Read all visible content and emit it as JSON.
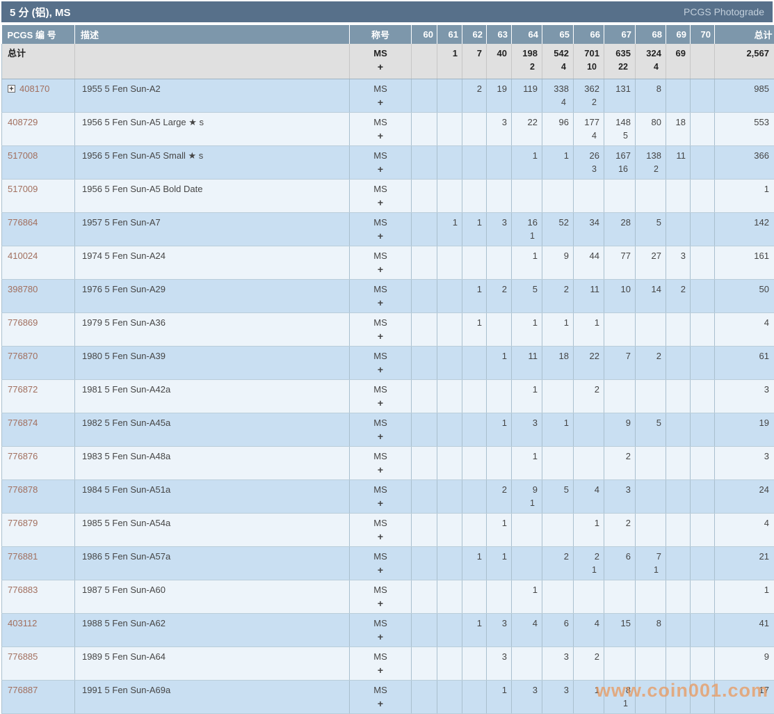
{
  "title_bar": {
    "title": "5 分 (铝), MS",
    "photograde_link": "PCGS Photograde"
  },
  "watermark": "www.coin001.com",
  "colors": {
    "title_bar_bg": "#57708a",
    "header_bg": "#7d97ab",
    "totals_bg": "#e0e0e0",
    "row_blue": "#c9dff2",
    "row_light": "#edf4fa",
    "pcgs_number_link": "#a26f5e",
    "watermark": "#e9995d"
  },
  "table": {
    "columns": {
      "number": "PCGS 编 号",
      "description": "描述",
      "designation": "称号",
      "total": "总计"
    },
    "grade_columns": [
      "60",
      "61",
      "62",
      "63",
      "64",
      "65",
      "66",
      "67",
      "68",
      "69",
      "70"
    ],
    "designation": {
      "main": "MS",
      "plus": "+"
    },
    "totals": {
      "label": "总计",
      "g": [
        [
          "",
          ""
        ],
        [
          "1",
          ""
        ],
        [
          "7",
          ""
        ],
        [
          "40",
          ""
        ],
        [
          "198",
          "2"
        ],
        [
          "542",
          "4"
        ],
        [
          "701",
          "10"
        ],
        [
          "635",
          "22"
        ],
        [
          "324",
          "4"
        ],
        [
          "69",
          ""
        ],
        [
          "",
          ""
        ]
      ],
      "total": "2,567"
    },
    "rows": [
      {
        "num": "408170",
        "exp": true,
        "desc": "1955 5 Fen Sun-A2",
        "g": [
          [
            "",
            ""
          ],
          [
            "",
            ""
          ],
          [
            "2",
            ""
          ],
          [
            "19",
            ""
          ],
          [
            "119",
            ""
          ],
          [
            "338",
            "4"
          ],
          [
            "362",
            "2"
          ],
          [
            "131",
            ""
          ],
          [
            "8",
            ""
          ],
          [
            "",
            ""
          ],
          [
            "",
            ""
          ]
        ],
        "total": "985"
      },
      {
        "num": "408729",
        "exp": false,
        "desc": "1956 5 Fen Sun-A5 Large ★ s",
        "g": [
          [
            "",
            ""
          ],
          [
            "",
            ""
          ],
          [
            "",
            ""
          ],
          [
            "3",
            ""
          ],
          [
            "22",
            ""
          ],
          [
            "96",
            ""
          ],
          [
            "177",
            "4"
          ],
          [
            "148",
            "5"
          ],
          [
            "80",
            ""
          ],
          [
            "18",
            ""
          ],
          [
            "",
            ""
          ]
        ],
        "total": "553"
      },
      {
        "num": "517008",
        "exp": false,
        "desc": "1956 5 Fen Sun-A5 Small ★ s",
        "g": [
          [
            "",
            ""
          ],
          [
            "",
            ""
          ],
          [
            "",
            ""
          ],
          [
            "",
            ""
          ],
          [
            "1",
            ""
          ],
          [
            "1",
            ""
          ],
          [
            "26",
            "3"
          ],
          [
            "167",
            "16"
          ],
          [
            "138",
            "2"
          ],
          [
            "11",
            ""
          ],
          [
            "",
            ""
          ]
        ],
        "total": "366"
      },
      {
        "num": "517009",
        "exp": false,
        "desc": "1956 5 Fen Sun-A5 Bold Date",
        "g": [
          [
            "",
            ""
          ],
          [
            "",
            ""
          ],
          [
            "",
            ""
          ],
          [
            "",
            ""
          ],
          [
            "",
            ""
          ],
          [
            "",
            ""
          ],
          [
            "",
            ""
          ],
          [
            "",
            ""
          ],
          [
            "",
            ""
          ],
          [
            "",
            ""
          ],
          [
            "",
            ""
          ]
        ],
        "total": "1"
      },
      {
        "num": "776864",
        "exp": false,
        "desc": "1957 5 Fen Sun-A7",
        "g": [
          [
            "",
            ""
          ],
          [
            "1",
            ""
          ],
          [
            "1",
            ""
          ],
          [
            "3",
            ""
          ],
          [
            "16",
            "1"
          ],
          [
            "52",
            ""
          ],
          [
            "34",
            ""
          ],
          [
            "28",
            ""
          ],
          [
            "5",
            ""
          ],
          [
            "",
            ""
          ],
          [
            "",
            ""
          ]
        ],
        "total": "142"
      },
      {
        "num": "410024",
        "exp": false,
        "desc": "1974 5 Fen Sun-A24",
        "g": [
          [
            "",
            ""
          ],
          [
            "",
            ""
          ],
          [
            "",
            ""
          ],
          [
            "",
            ""
          ],
          [
            "1",
            ""
          ],
          [
            "9",
            ""
          ],
          [
            "44",
            ""
          ],
          [
            "77",
            ""
          ],
          [
            "27",
            ""
          ],
          [
            "3",
            ""
          ],
          [
            "",
            ""
          ]
        ],
        "total": "161"
      },
      {
        "num": "398780",
        "exp": false,
        "desc": "1976 5 Fen Sun-A29",
        "g": [
          [
            "",
            ""
          ],
          [
            "",
            ""
          ],
          [
            "1",
            ""
          ],
          [
            "2",
            ""
          ],
          [
            "5",
            ""
          ],
          [
            "2",
            ""
          ],
          [
            "11",
            ""
          ],
          [
            "10",
            ""
          ],
          [
            "14",
            ""
          ],
          [
            "2",
            ""
          ],
          [
            "",
            ""
          ]
        ],
        "total": "50"
      },
      {
        "num": "776869",
        "exp": false,
        "desc": "1979 5 Fen Sun-A36",
        "g": [
          [
            "",
            ""
          ],
          [
            "",
            ""
          ],
          [
            "1",
            ""
          ],
          [
            "",
            ""
          ],
          [
            "1",
            ""
          ],
          [
            "1",
            ""
          ],
          [
            "1",
            ""
          ],
          [
            "",
            ""
          ],
          [
            "",
            ""
          ],
          [
            "",
            ""
          ],
          [
            "",
            ""
          ]
        ],
        "total": "4"
      },
      {
        "num": "776870",
        "exp": false,
        "desc": "1980 5 Fen Sun-A39",
        "g": [
          [
            "",
            ""
          ],
          [
            "",
            ""
          ],
          [
            "",
            ""
          ],
          [
            "1",
            ""
          ],
          [
            "11",
            ""
          ],
          [
            "18",
            ""
          ],
          [
            "22",
            ""
          ],
          [
            "7",
            ""
          ],
          [
            "2",
            ""
          ],
          [
            "",
            ""
          ],
          [
            "",
            ""
          ]
        ],
        "total": "61"
      },
      {
        "num": "776872",
        "exp": false,
        "desc": "1981 5 Fen Sun-A42a",
        "g": [
          [
            "",
            ""
          ],
          [
            "",
            ""
          ],
          [
            "",
            ""
          ],
          [
            "",
            ""
          ],
          [
            "1",
            ""
          ],
          [
            "",
            ""
          ],
          [
            "2",
            ""
          ],
          [
            "",
            ""
          ],
          [
            "",
            ""
          ],
          [
            "",
            ""
          ],
          [
            "",
            ""
          ]
        ],
        "total": "3"
      },
      {
        "num": "776874",
        "exp": false,
        "desc": "1982 5 Fen Sun-A45a",
        "g": [
          [
            "",
            ""
          ],
          [
            "",
            ""
          ],
          [
            "",
            ""
          ],
          [
            "1",
            ""
          ],
          [
            "3",
            ""
          ],
          [
            "1",
            ""
          ],
          [
            "",
            ""
          ],
          [
            "9",
            ""
          ],
          [
            "5",
            ""
          ],
          [
            "",
            ""
          ],
          [
            "",
            ""
          ]
        ],
        "total": "19"
      },
      {
        "num": "776876",
        "exp": false,
        "desc": "1983 5 Fen Sun-A48a",
        "g": [
          [
            "",
            ""
          ],
          [
            "",
            ""
          ],
          [
            "",
            ""
          ],
          [
            "",
            ""
          ],
          [
            "1",
            ""
          ],
          [
            "",
            ""
          ],
          [
            "",
            ""
          ],
          [
            "2",
            ""
          ],
          [
            "",
            ""
          ],
          [
            "",
            ""
          ],
          [
            "",
            ""
          ]
        ],
        "total": "3"
      },
      {
        "num": "776878",
        "exp": false,
        "desc": "1984 5 Fen Sun-A51a",
        "g": [
          [
            "",
            ""
          ],
          [
            "",
            ""
          ],
          [
            "",
            ""
          ],
          [
            "2",
            ""
          ],
          [
            "9",
            "1"
          ],
          [
            "5",
            ""
          ],
          [
            "4",
            ""
          ],
          [
            "3",
            ""
          ],
          [
            "",
            ""
          ],
          [
            "",
            ""
          ],
          [
            "",
            ""
          ]
        ],
        "total": "24"
      },
      {
        "num": "776879",
        "exp": false,
        "desc": "1985 5 Fen Sun-A54a",
        "g": [
          [
            "",
            ""
          ],
          [
            "",
            ""
          ],
          [
            "",
            ""
          ],
          [
            "1",
            ""
          ],
          [
            "",
            ""
          ],
          [
            "",
            ""
          ],
          [
            "1",
            ""
          ],
          [
            "2",
            ""
          ],
          [
            "",
            ""
          ],
          [
            "",
            ""
          ],
          [
            "",
            ""
          ]
        ],
        "total": "4"
      },
      {
        "num": "776881",
        "exp": false,
        "desc": "1986 5 Fen Sun-A57a",
        "g": [
          [
            "",
            ""
          ],
          [
            "",
            ""
          ],
          [
            "1",
            ""
          ],
          [
            "1",
            ""
          ],
          [
            "",
            ""
          ],
          [
            "2",
            ""
          ],
          [
            "2",
            "1"
          ],
          [
            "6",
            ""
          ],
          [
            "7",
            "1"
          ],
          [
            "",
            ""
          ],
          [
            "",
            ""
          ]
        ],
        "total": "21"
      },
      {
        "num": "776883",
        "exp": false,
        "desc": "1987 5 Fen Sun-A60",
        "g": [
          [
            "",
            ""
          ],
          [
            "",
            ""
          ],
          [
            "",
            ""
          ],
          [
            "",
            ""
          ],
          [
            "1",
            ""
          ],
          [
            "",
            ""
          ],
          [
            "",
            ""
          ],
          [
            "",
            ""
          ],
          [
            "",
            ""
          ],
          [
            "",
            ""
          ],
          [
            "",
            ""
          ]
        ],
        "total": "1"
      },
      {
        "num": "403112",
        "exp": false,
        "desc": "1988 5 Fen Sun-A62",
        "g": [
          [
            "",
            ""
          ],
          [
            "",
            ""
          ],
          [
            "1",
            ""
          ],
          [
            "3",
            ""
          ],
          [
            "4",
            ""
          ],
          [
            "6",
            ""
          ],
          [
            "4",
            ""
          ],
          [
            "15",
            ""
          ],
          [
            "8",
            ""
          ],
          [
            "",
            ""
          ],
          [
            "",
            ""
          ]
        ],
        "total": "41"
      },
      {
        "num": "776885",
        "exp": false,
        "desc": "1989 5 Fen Sun-A64",
        "g": [
          [
            "",
            ""
          ],
          [
            "",
            ""
          ],
          [
            "",
            ""
          ],
          [
            "3",
            ""
          ],
          [
            "",
            ""
          ],
          [
            "3",
            ""
          ],
          [
            "2",
            ""
          ],
          [
            "",
            ""
          ],
          [
            "",
            ""
          ],
          [
            "",
            ""
          ],
          [
            "",
            ""
          ]
        ],
        "total": "9"
      },
      {
        "num": "776887",
        "exp": false,
        "desc": "1991 5 Fen Sun-A69a",
        "g": [
          [
            "",
            ""
          ],
          [
            "",
            ""
          ],
          [
            "",
            ""
          ],
          [
            "1",
            ""
          ],
          [
            "3",
            ""
          ],
          [
            "3",
            ""
          ],
          [
            "1",
            ""
          ],
          [
            "8",
            "1"
          ],
          [
            "",
            ""
          ],
          [
            "",
            ""
          ],
          [
            "",
            ""
          ]
        ],
        "total": "17"
      }
    ]
  }
}
